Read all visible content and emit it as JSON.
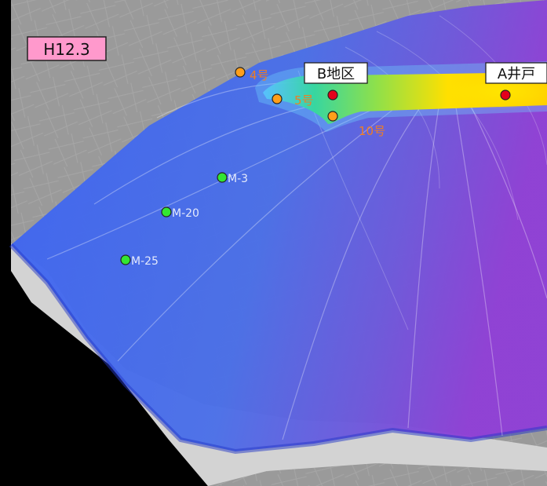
{
  "date_badge": {
    "label": "H12.3",
    "fill": "#ff99cc",
    "border": "#222222"
  },
  "colors": {
    "background": "#000000",
    "terrain": "#9a9a9a",
    "shore": "#cfcfcf",
    "plume_low": "#3b5cff",
    "plume_mid": "#33d17a",
    "plume_high": "#ffd400",
    "purple": "#8f3fd6",
    "red_point": "#e4001b",
    "orange_point": "#ff9f1a",
    "green_point": "#33e633",
    "orange_text": "#f07d23"
  },
  "boxed_labels": [
    {
      "id": "b-district",
      "text": "B地区"
    },
    {
      "id": "a-well",
      "text": "A井戸"
    }
  ],
  "red_points": [
    {
      "id": "b-district-point",
      "name": "B地区"
    },
    {
      "id": "a-well-point",
      "name": "A井戸"
    }
  ],
  "orange_wells": [
    {
      "id": "well-4",
      "label": "4号"
    },
    {
      "id": "well-5",
      "label": "5号"
    },
    {
      "id": "well-10",
      "label": "10号"
    }
  ],
  "monitoring_points": [
    {
      "id": "m-3",
      "label": "M-3"
    },
    {
      "id": "m-20",
      "label": "M-20"
    },
    {
      "id": "m-25",
      "label": "M-25"
    }
  ]
}
